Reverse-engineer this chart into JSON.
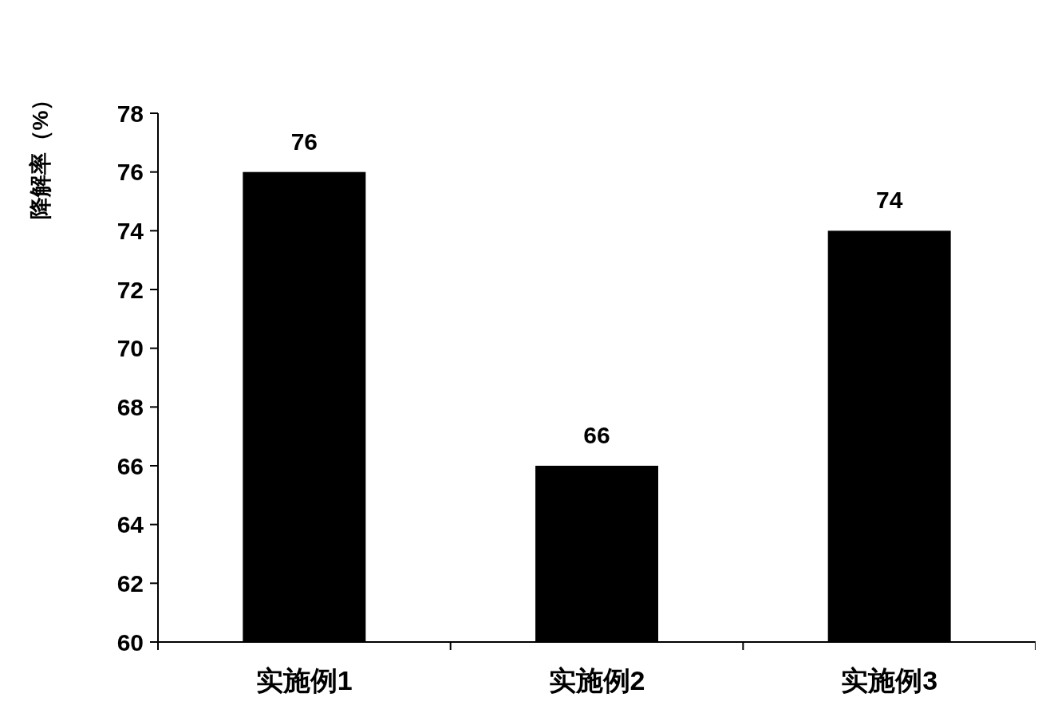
{
  "chart_data": {
    "type": "bar",
    "ylabel": "降解率（%）",
    "categories": [
      "实施例1",
      "实施例2",
      "实施例3"
    ],
    "values": [
      76,
      66,
      74
    ],
    "color": "#000000",
    "ylim": [
      60,
      78
    ],
    "yticks": [
      60,
      62,
      64,
      66,
      68,
      70,
      72,
      74,
      76,
      78
    ],
    "data_labels": true,
    "grid": false
  }
}
